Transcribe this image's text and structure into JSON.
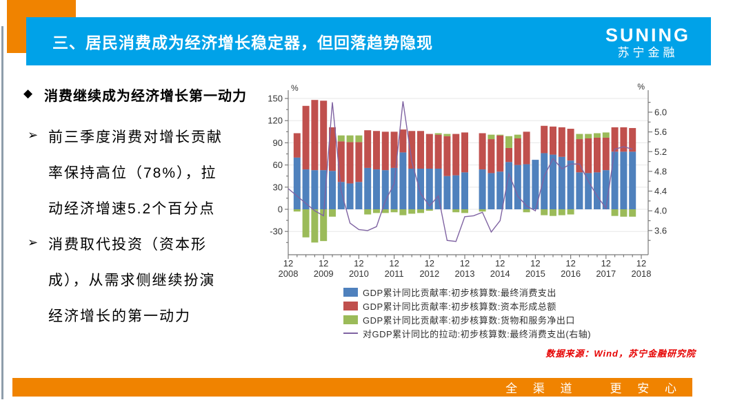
{
  "slide": {
    "title": "三、居民消费成为经济增长稳定器，但回落趋势隐现",
    "logo": {
      "name": "SUNING",
      "subname": "苏宁金融"
    },
    "heading": "消费继续成为经济增长第一动力",
    "bullets": [
      [
        "前三季度消费对增长贡献",
        "率保持高位（78%），拉",
        "动经济增速5.2个百分点"
      ],
      [
        "消费取代投资（资本形",
        "成），从需求侧继续扮演",
        "经济增长的第一动力"
      ]
    ],
    "source_note": "数据来源：Wind，苏宁金融研究院",
    "footer": {
      "left": "全 渠 道",
      "right": "更 安 心"
    },
    "colors": {
      "header_blue": "#00a2e8",
      "accent_orange": "#f08300",
      "source_red": "#e60000",
      "left_rule_gray": "#8e9dab"
    }
  },
  "chart_data": {
    "type": "bar",
    "subtype": "stacked bars with line on secondary axis",
    "x_tick_top": "12",
    "years": [
      "2008",
      "2009",
      "2010",
      "2011",
      "2012",
      "2013",
      "2014",
      "2015",
      "2016",
      "2017",
      "2018"
    ],
    "quarters": [
      "2008-12",
      "2009-03",
      "2009-06",
      "2009-09",
      "2009-12",
      "2010-03",
      "2010-06",
      "2010-09",
      "2010-12",
      "2011-03",
      "2011-06",
      "2011-09",
      "2011-12",
      "2012-03",
      "2012-06",
      "2012-09",
      "2012-12",
      "2013-03",
      "2013-06",
      "2013-09",
      "2013-12",
      "2014-03",
      "2014-06",
      "2014-09",
      "2014-12",
      "2015-03",
      "2015-06",
      "2015-09",
      "2015-12",
      "2016-03",
      "2016-06",
      "2016-09",
      "2016-12",
      "2017-03",
      "2017-06",
      "2017-09",
      "2017-12",
      "2018-03",
      "2018-06",
      "2018-09",
      "2018-12"
    ],
    "series": [
      {
        "name": "GDP累计同比贡献率:初步核算数:最终消费支出",
        "type": "bar",
        "axis": "left",
        "color": "#4f81bd",
        "values": [
          null,
          70,
          54,
          53,
          53,
          52,
          37,
          35,
          37,
          56,
          54,
          53,
          56,
          77,
          55,
          55,
          55,
          55,
          45,
          46,
          50,
          null,
          54,
          49,
          51,
          64,
          60,
          61,
          67,
          76,
          74,
          71,
          66,
          50,
          49,
          50,
          53,
          78,
          78,
          78,
          null
        ]
      },
      {
        "name": "GDP累计同比贡献率:初步核算数:资本形成总额",
        "type": "bar",
        "axis": "left",
        "color": "#c0504d",
        "values": [
          null,
          33,
          86,
          95,
          94,
          59,
          55,
          56,
          54,
          51,
          52,
          52,
          49,
          31,
          51,
          51,
          47,
          46,
          54,
          56,
          54,
          null,
          49,
          46,
          49,
          19,
          36,
          44,
          0,
          37,
          38,
          40,
          43,
          45,
          47,
          47,
          44,
          33,
          33,
          32,
          null
        ]
      },
      {
        "name": "GDP累计同比贡献率:初步核算数:货物和服务净出口",
        "type": "bar",
        "axis": "left",
        "color": "#9bbb59",
        "values": [
          null,
          -3,
          -38,
          -45,
          -43,
          -10,
          8,
          9,
          9,
          -7,
          -5,
          -5,
          -4,
          -8,
          -6,
          -5,
          -2,
          2,
          3,
          -4,
          -5,
          null,
          -3,
          6,
          1,
          16,
          5,
          -4,
          0,
          -8,
          -9,
          -8,
          -7,
          7,
          6,
          6,
          7,
          -9,
          -10,
          -10,
          null
        ]
      },
      {
        "name": "对GDP累计同比的拉动:初步核算数:最终消费支出(右轴)",
        "type": "line",
        "axis": "right",
        "color": "#7f63a2",
        "values": [
          4.45,
          4.3,
          4.15,
          4.0,
          3.9,
          6.2,
          4.4,
          3.75,
          3.62,
          3.6,
          3.68,
          4.2,
          4.55,
          6.22,
          5.0,
          4.35,
          4.1,
          4.3,
          3.4,
          3.38,
          3.88,
          3.9,
          3.97,
          3.57,
          3.8,
          4.75,
          4.3,
          4.1,
          4.0,
          4.7,
          5.06,
          4.85,
          4.95,
          4.95,
          4.6,
          4.3,
          4.05,
          5.25,
          5.3,
          5.25,
          null
        ]
      }
    ],
    "left_axis": {
      "unit": "%",
      "ticks": [
        150,
        120,
        90,
        60,
        30,
        0,
        -30
      ],
      "min": -61.5,
      "max": 157.5,
      "minor_step": 15
    },
    "right_axis": {
      "unit": "%",
      "ticks": [
        6.0,
        5.6,
        5.2,
        4.8,
        4.4,
        4.0,
        3.6
      ],
      "min": 3.11,
      "max": 6.39,
      "minor_step": 0.2
    },
    "grid": true,
    "legend_position": "bottom"
  }
}
